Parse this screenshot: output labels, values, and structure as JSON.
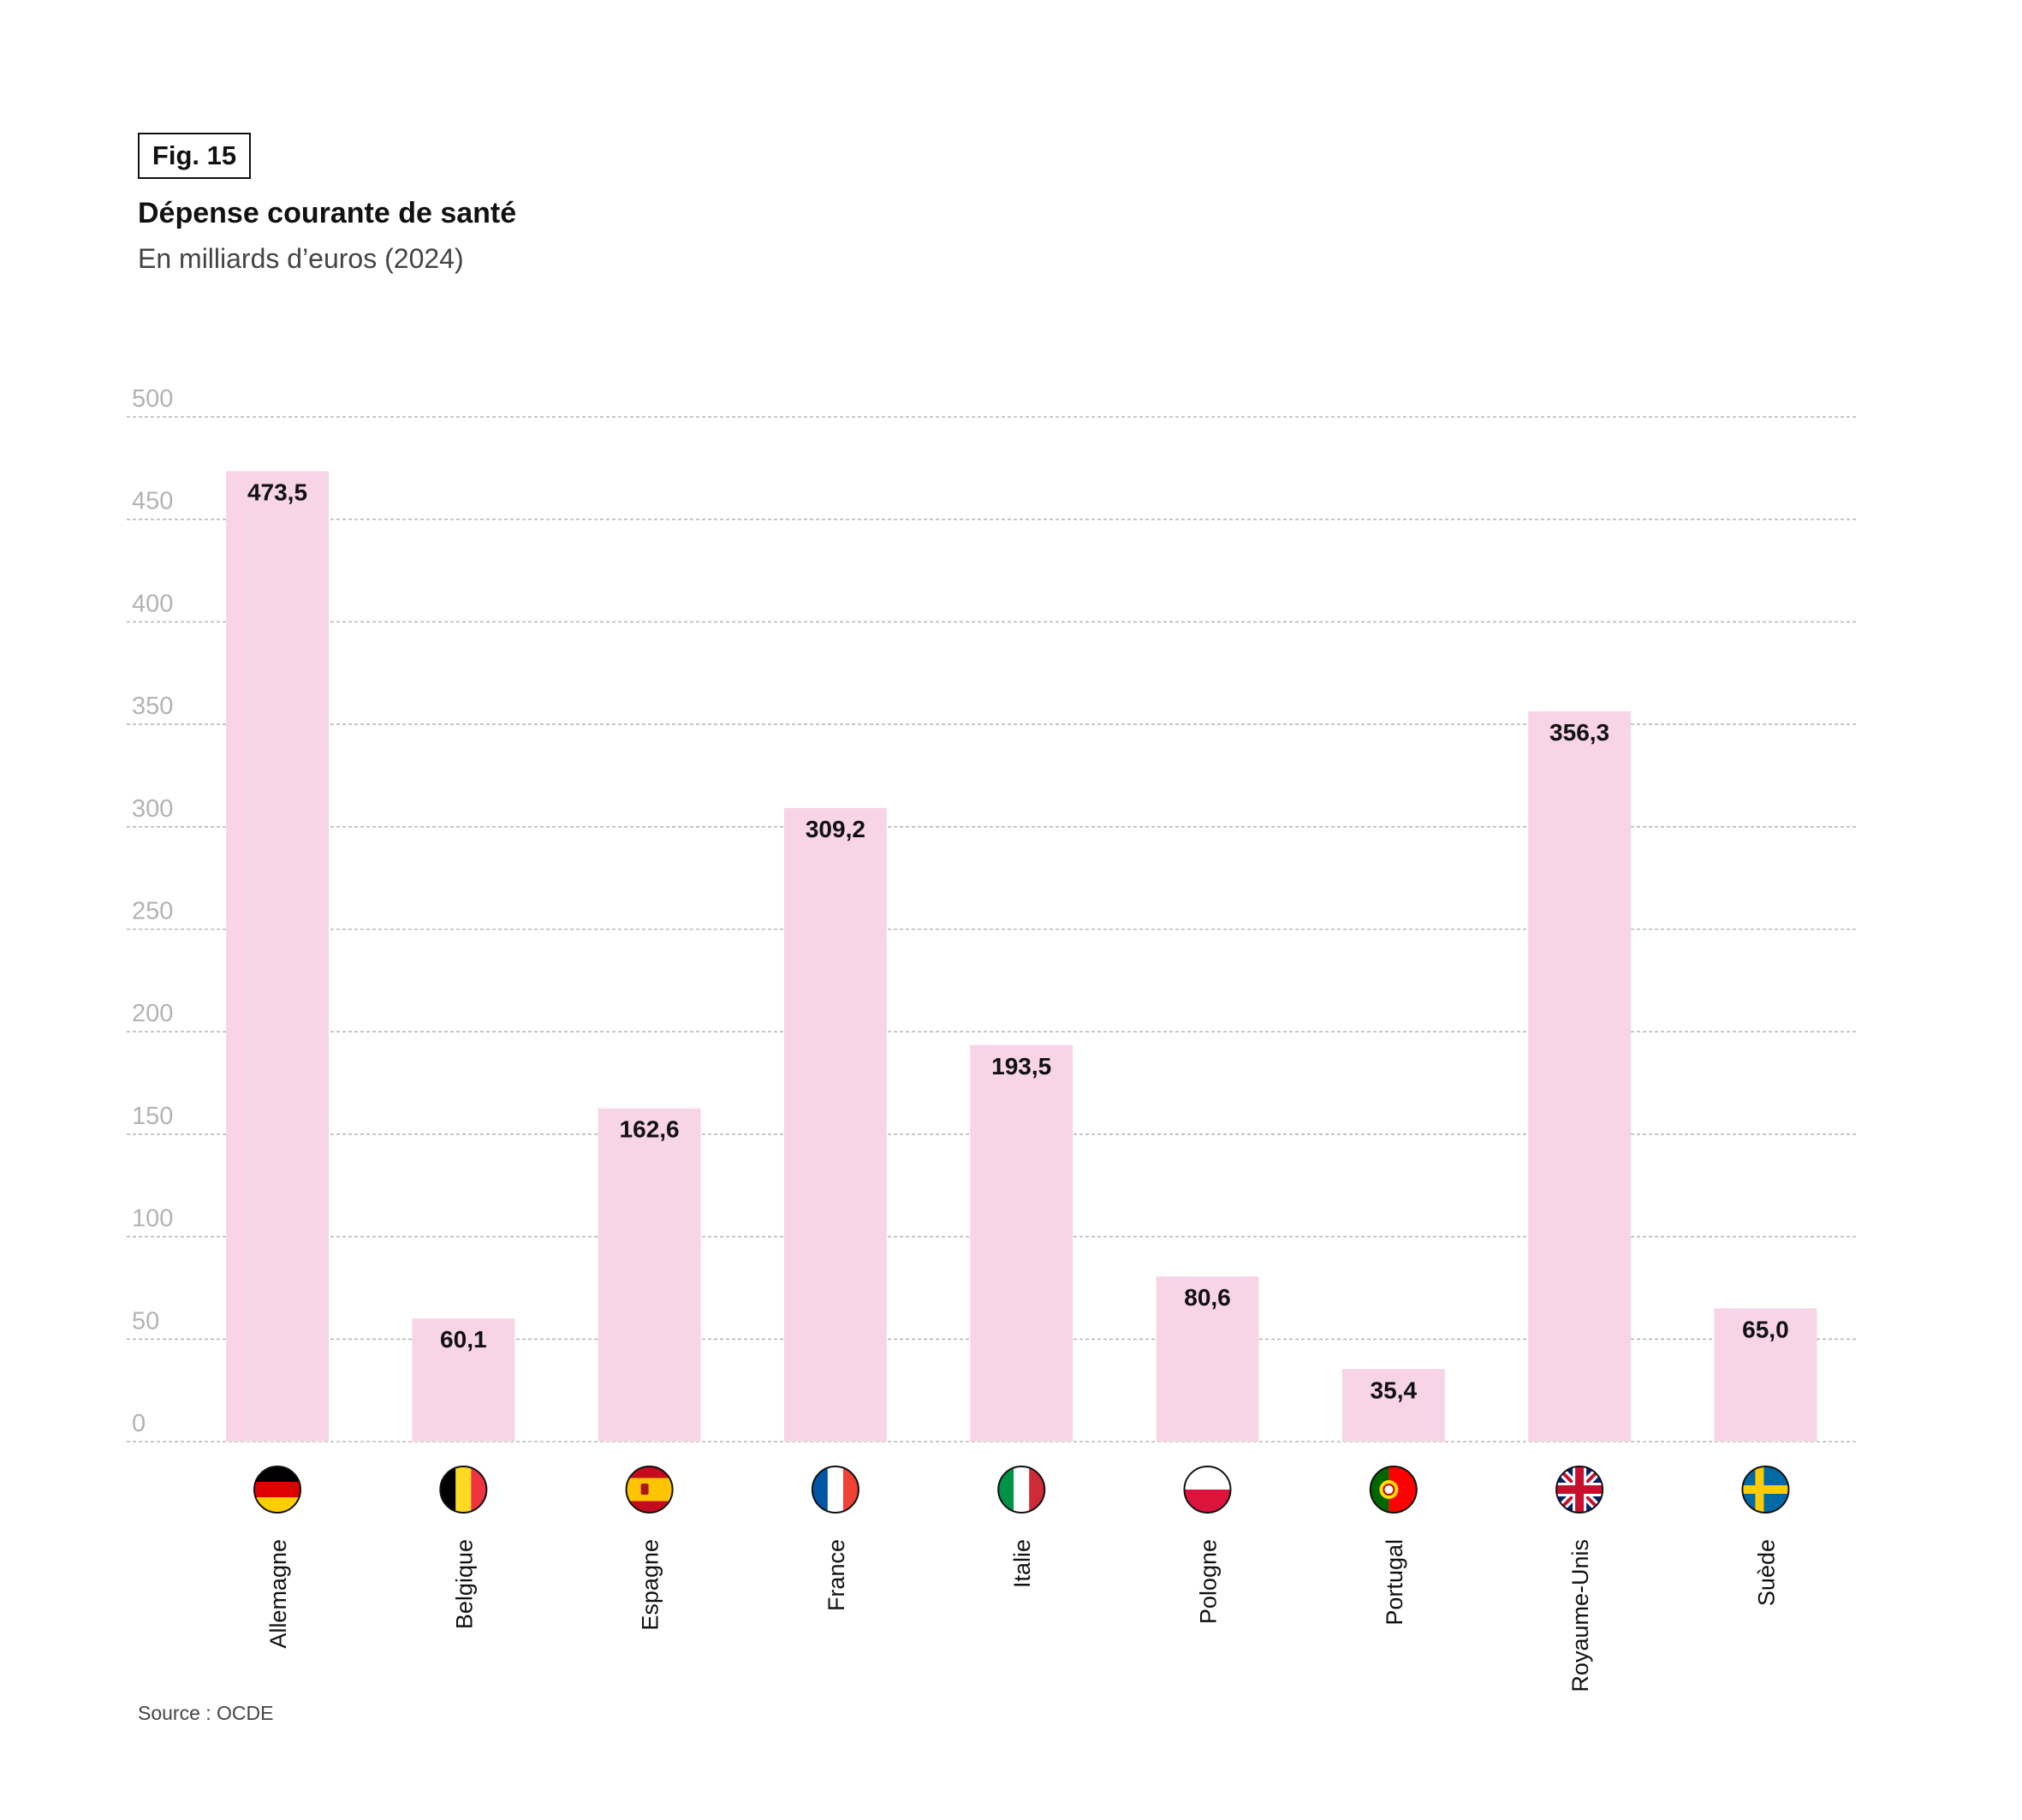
{
  "figure": {
    "badge": "Fig. 15",
    "title": "Dépense courante de santé",
    "subtitle": "En milliards d’euros (2024)",
    "source": "Source : OCDE"
  },
  "colors": {
    "bar": "#f7d4e6",
    "gridline": "#b9b9b9",
    "tick_text": "#b3b3b3"
  },
  "chart_data": {
    "type": "bar",
    "title": "Dépense courante de santé",
    "subtitle": "En milliards d’euros (2024)",
    "categories": [
      "Allemagne",
      "Belgique",
      "Espagne",
      "France",
      "Italie",
      "Pologne",
      "Portugal",
      "Royaume-Unis",
      "Suède"
    ],
    "values": [
      473.5,
      60.1,
      162.6,
      309.2,
      193.5,
      80.6,
      35.4,
      356.3,
      65.0
    ],
    "value_labels": [
      "473,5",
      "60,1",
      "162,6",
      "309,2",
      "193,5",
      "80,6",
      "35,4",
      "356,3",
      "65,0"
    ],
    "flags": [
      "flag-germany-icon",
      "flag-belgium-icon",
      "flag-spain-icon",
      "flag-france-icon",
      "flag-italy-icon",
      "flag-poland-icon",
      "flag-portugal-icon",
      "flag-uk-icon",
      "flag-sweden-icon"
    ],
    "ylim": [
      0,
      500
    ],
    "yticks": [
      0,
      50,
      100,
      150,
      200,
      250,
      300,
      350,
      400,
      450,
      500
    ],
    "grid": true,
    "xlabel": "",
    "ylabel": ""
  }
}
